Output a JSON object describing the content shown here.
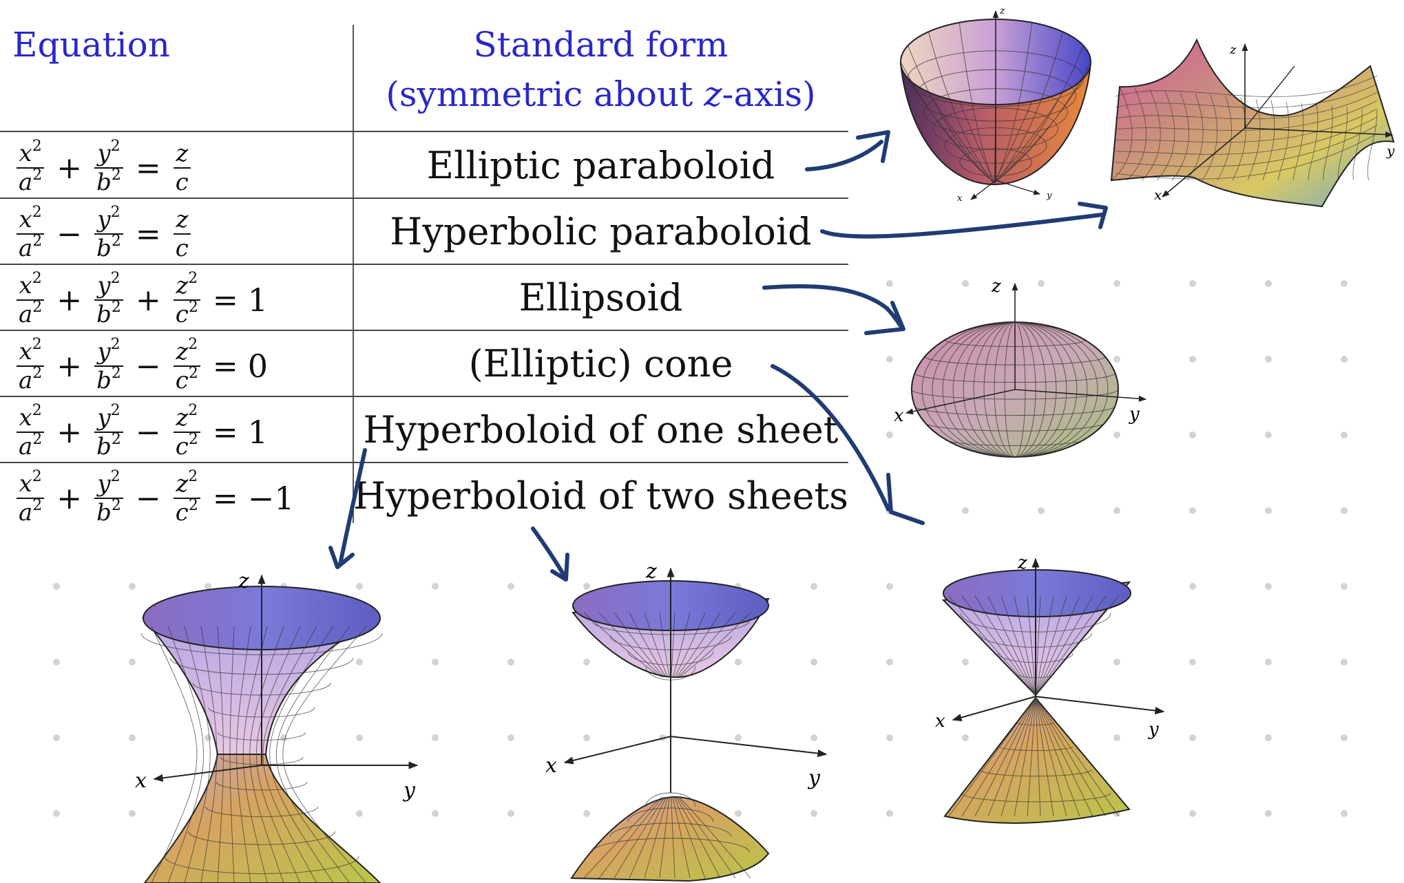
{
  "table": {
    "header_equation": "Equation",
    "header_standard_form_line1": "Standard form",
    "header_standard_form_line2_a": "(symmetric about ",
    "header_standard_form_line2_var": "z",
    "header_standard_form_line2_b": "-axis)",
    "rows": [
      {
        "terms": [
          {
            "num": "x",
            "den": "a"
          },
          {
            "num": "y",
            "den": "b"
          }
        ],
        "ops": [
          "+",
          "="
        ],
        "rhs_frac": {
          "num": "z",
          "den": "c"
        },
        "name": "Elliptic paraboloid"
      },
      {
        "terms": [
          {
            "num": "x",
            "den": "a"
          },
          {
            "num": "y",
            "den": "b"
          }
        ],
        "ops": [
          "−",
          "="
        ],
        "rhs_frac": {
          "num": "z",
          "den": "c"
        },
        "name": "Hyperbolic paraboloid"
      },
      {
        "terms": [
          {
            "num": "x",
            "den": "a"
          },
          {
            "num": "y",
            "den": "b"
          },
          {
            "num": "z",
            "den": "c"
          }
        ],
        "ops": [
          "+",
          "+",
          "="
        ],
        "rhs": "1",
        "name": "Ellipsoid"
      },
      {
        "terms": [
          {
            "num": "x",
            "den": "a"
          },
          {
            "num": "y",
            "den": "b"
          },
          {
            "num": "z",
            "den": "c"
          }
        ],
        "ops": [
          "+",
          "−",
          "="
        ],
        "rhs": "0",
        "name": "(Elliptic) cone"
      },
      {
        "terms": [
          {
            "num": "x",
            "den": "a"
          },
          {
            "num": "y",
            "den": "b"
          },
          {
            "num": "z",
            "den": "c"
          }
        ],
        "ops": [
          "+",
          "−",
          "="
        ],
        "rhs": "1",
        "name": "Hyperboloid of one sheet"
      },
      {
        "terms": [
          {
            "num": "x",
            "den": "a"
          },
          {
            "num": "y",
            "den": "b"
          },
          {
            "num": "z",
            "den": "c"
          }
        ],
        "ops": [
          "+",
          "−",
          "="
        ],
        "rhs": "−1",
        "name": "Hyperboloid of two sheets"
      }
    ],
    "exponent": "2"
  },
  "axis_labels": {
    "x": "x",
    "y": "y",
    "z": "z"
  },
  "colors": {
    "header_text": "#2828c8",
    "arrow": "#1f3c73",
    "dot": "#d3d3d3",
    "surface_blue": "#6f6fd8",
    "surface_pink": "#d98fb5",
    "surface_orange": "#e0924a",
    "surface_yellow": "#d6cf58",
    "surface_green": "#8fbf6a",
    "mesh": "#2b2b2b"
  }
}
